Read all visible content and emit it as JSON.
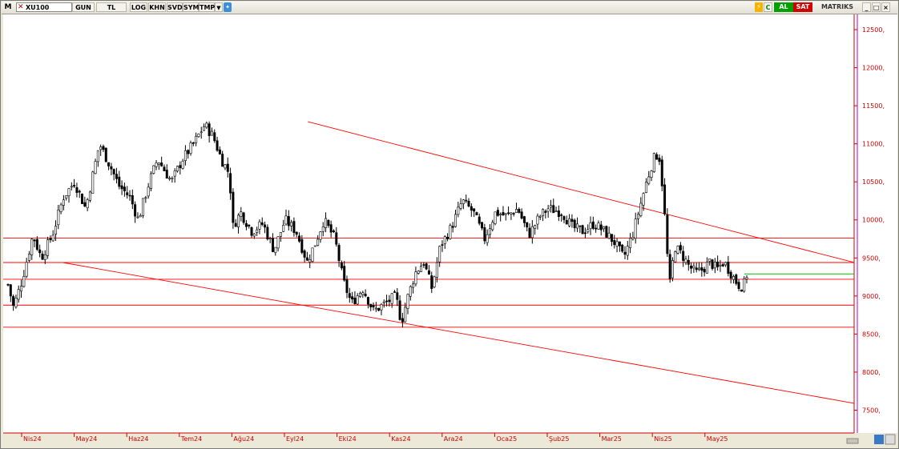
{
  "toolbar": {
    "app_letter": "M",
    "symbol": "XU100",
    "period": "GUN",
    "currency": "TL",
    "buttons": [
      "LOG",
      "KHN",
      "SVD",
      "SYM",
      "TMP"
    ],
    "buy": "AL",
    "sell": "SAT",
    "brand": "MATRIKS",
    "tag_c": "C",
    "colors": {
      "buy": "#00a000",
      "sell": "#d00000"
    }
  },
  "chart_data": {
    "type": "candlestick",
    "y_ticks": [
      "12500,",
      "12000,",
      "11500,",
      "11000,",
      "10500,",
      "10000,",
      "9500,",
      "9000,",
      "8500,",
      "8000,",
      "7500,"
    ],
    "y_tick_values": [
      12500,
      12000,
      11500,
      11000,
      10500,
      10000,
      9500,
      9000,
      8500,
      8000,
      7500
    ],
    "x_ticks": [
      "Nis24",
      "May24",
      "Haz24",
      "Tem24",
      "Ağu24",
      "Eyl24",
      "Eki24",
      "Kas24",
      "Ara24",
      "Oca25",
      "Şub25",
      "Mar25",
      "Nis25",
      "May25"
    ],
    "ylim": [
      7200,
      12700
    ],
    "axis_color": "#cc0000",
    "levels": [
      9760,
      9440,
      9220,
      8880,
      8590
    ],
    "level_color": "#ff0000",
    "last_price_level": 9290,
    "last_price_color": "#00c000",
    "trendlines": [
      {
        "x1": 0.358,
        "y1": 11290,
        "x2": 1.0,
        "y2": 9440
      },
      {
        "x1": 0.07,
        "y1": 9440,
        "x2": 1.0,
        "y2": 7590
      }
    ],
    "anchors": [
      [
        0.0,
        9150
      ],
      [
        0.01,
        8850
      ],
      [
        0.025,
        9200
      ],
      [
        0.035,
        9500
      ],
      [
        0.045,
        9800
      ],
      [
        0.06,
        9500
      ],
      [
        0.08,
        9800
      ],
      [
        0.1,
        10300
      ],
      [
        0.12,
        10500
      ],
      [
        0.14,
        10150
      ],
      [
        0.165,
        11000
      ],
      [
        0.185,
        10700
      ],
      [
        0.2,
        10450
      ],
      [
        0.22,
        10300
      ],
      [
        0.235,
        10000
      ],
      [
        0.255,
        10500
      ],
      [
        0.27,
        10800
      ],
      [
        0.295,
        10500
      ],
      [
        0.315,
        10800
      ],
      [
        0.335,
        11000
      ],
      [
        0.355,
        11250
      ],
      [
        0.37,
        11100
      ],
      [
        0.385,
        10800
      ],
      [
        0.4,
        10600
      ],
      [
        0.405,
        9900
      ],
      [
        0.42,
        10100
      ],
      [
        0.44,
        9850
      ],
      [
        0.46,
        9950
      ],
      [
        0.48,
        9600
      ],
      [
        0.5,
        10000
      ],
      [
        0.52,
        9850
      ],
      [
        0.54,
        9450
      ],
      [
        0.555,
        9700
      ],
      [
        0.57,
        10000
      ],
      [
        0.59,
        9750
      ],
      [
        0.605,
        9200
      ],
      [
        0.62,
        8900
      ],
      [
        0.64,
        9100
      ],
      [
        0.66,
        8800
      ],
      [
        0.68,
        8900
      ],
      [
        0.7,
        9000
      ],
      [
        0.71,
        8650
      ],
      [
        0.72,
        8950
      ],
      [
        0.735,
        9300
      ],
      [
        0.75,
        9450
      ],
      [
        0.765,
        9100
      ],
      [
        0.78,
        9650
      ],
      [
        0.8,
        9900
      ],
      [
        0.82,
        10250
      ],
      [
        0.84,
        10100
      ],
      [
        0.86,
        9750
      ],
      [
        0.88,
        10100
      ],
      [
        0.9,
        10050
      ],
      [
        0.92,
        10150
      ],
      [
        0.94,
        9800
      ],
      [
        0.96,
        10050
      ],
      [
        0.975,
        10150
      ],
      [
        1.0,
        10100
      ]
    ]
  },
  "chart_data_part2": {
    "anchors": [
      [
        0.0,
        10100
      ],
      [
        0.03,
        9900
      ],
      [
        0.06,
        9850
      ],
      [
        0.09,
        9950
      ],
      [
        0.12,
        9850
      ],
      [
        0.15,
        9700
      ],
      [
        0.175,
        9500
      ],
      [
        0.2,
        9800
      ],
      [
        0.22,
        10150
      ],
      [
        0.24,
        10500
      ],
      [
        0.26,
        10800
      ],
      [
        0.275,
        10880
      ],
      [
        0.285,
        10450
      ],
      [
        0.295,
        9850
      ],
      [
        0.305,
        9100
      ],
      [
        0.32,
        9650
      ],
      [
        0.34,
        9550
      ],
      [
        0.36,
        9400
      ],
      [
        0.38,
        9300
      ],
      [
        0.4,
        9350
      ],
      [
        0.42,
        9450
      ],
      [
        0.44,
        9350
      ],
      [
        0.46,
        9450
      ],
      [
        0.48,
        9300
      ],
      [
        0.5,
        9150
      ],
      [
        0.515,
        9120
      ],
      [
        0.525,
        9280
      ]
    ]
  }
}
